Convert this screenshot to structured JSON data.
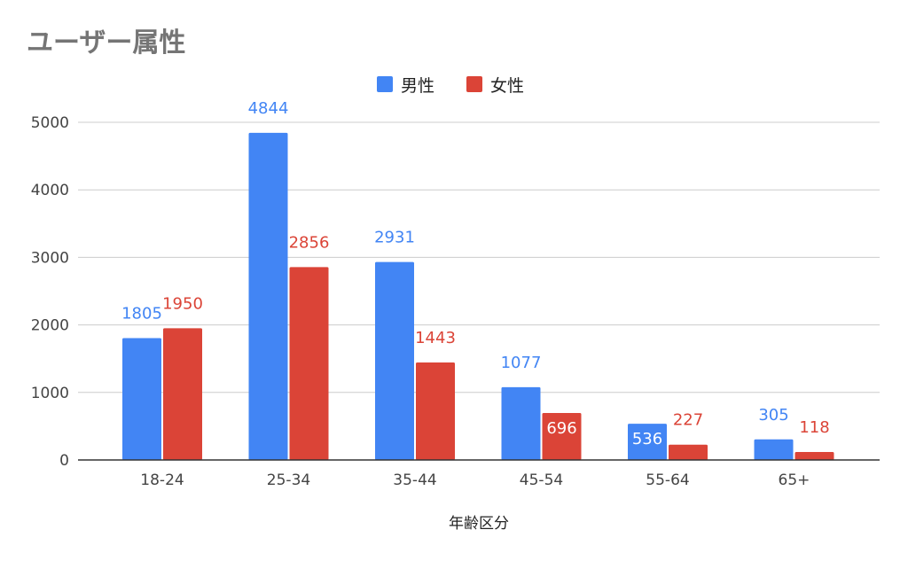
{
  "chart_data": {
    "type": "bar",
    "title": "ユーザー属性",
    "xlabel": "年齢区分",
    "ylabel": "",
    "categories": [
      "18-24",
      "25-34",
      "35-44",
      "45-54",
      "55-64",
      "65+"
    ],
    "series": [
      {
        "name": "男性",
        "color": "#4285F4",
        "values": [
          1805,
          4844,
          2931,
          1077,
          536,
          305
        ]
      },
      {
        "name": "女性",
        "color": "#DB4437",
        "values": [
          1950,
          2856,
          1443,
          696,
          227,
          118
        ]
      }
    ],
    "ylim": [
      0,
      5000
    ],
    "yticks": [
      0,
      1000,
      2000,
      3000,
      4000,
      5000
    ],
    "grid": true,
    "legend": "top-center"
  }
}
